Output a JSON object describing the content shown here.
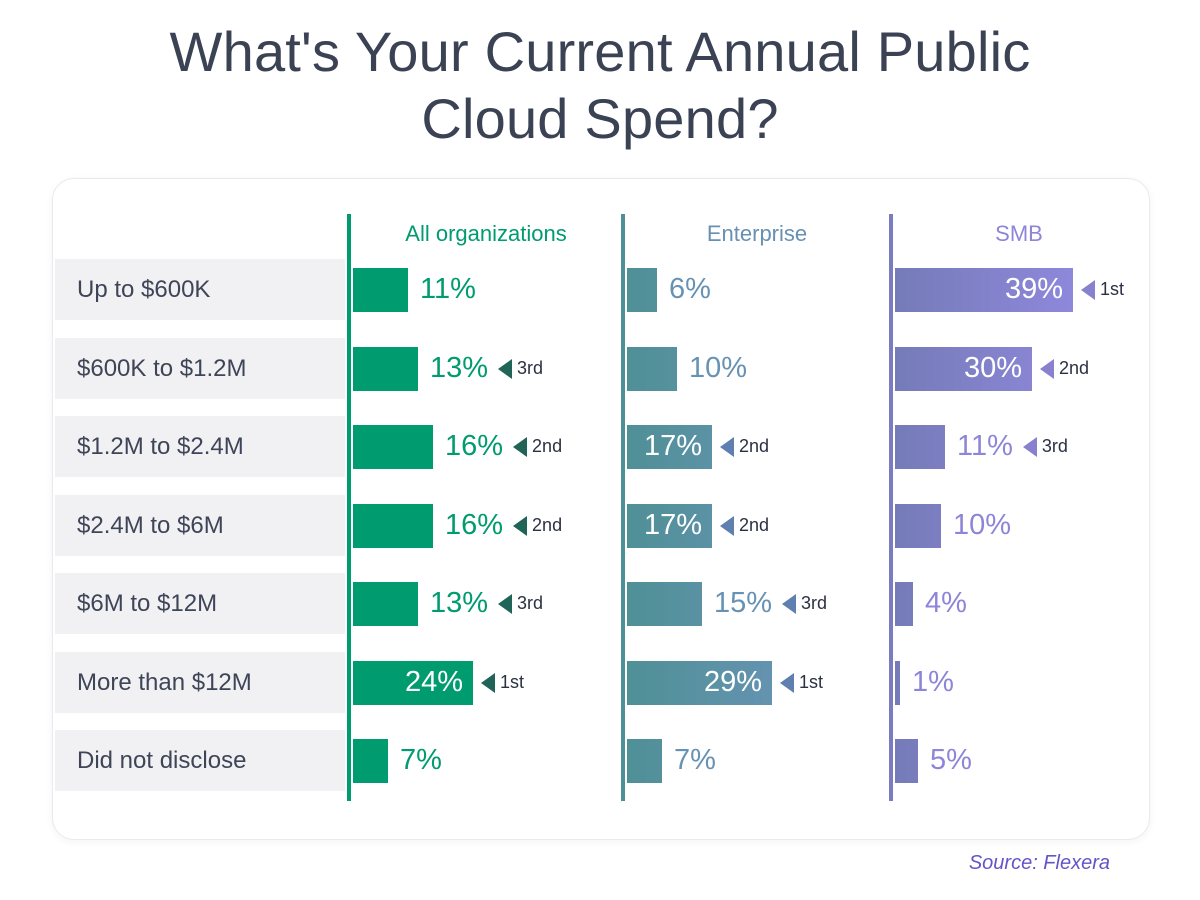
{
  "title": "What's Your Current Annual Public Cloud Spend?",
  "source": "Source: Flexera",
  "colors": {
    "title_text": "#3A4254",
    "row_label_text": "#3E4557",
    "row_band_bg": "#F1F1F4",
    "rank_text": "#2A3142",
    "card_border": "#E9EAEE",
    "source_text": "#6355C8"
  },
  "chart_data": {
    "type": "bar",
    "orientation": "horizontal",
    "unit": "%",
    "xlim": [
      0,
      40
    ],
    "grid": false,
    "legend_position": "column-headers-top",
    "title": "What's Your Current Annual Public Cloud Spend?",
    "categories": [
      "Up to $600K",
      "$600K to $1.2M",
      "$1.2M to $2.4M",
      "$2.4M to $6M",
      "$6M to $12M",
      "More than $12M",
      "Did not disclose"
    ],
    "series": [
      {
        "name": "All organizations",
        "values": [
          11,
          13,
          16,
          16,
          13,
          24,
          7
        ],
        "ranks": [
          null,
          "3rd",
          "2nd",
          "2nd",
          "3rd",
          "1st",
          null
        ],
        "label_inside": [
          false,
          false,
          false,
          false,
          false,
          true,
          false
        ],
        "header_color": "#019B70",
        "axis_color": "#019B70",
        "bar_color_start": "#019B70",
        "bar_color_end": "#019B70",
        "value_color": "#019B70",
        "arrow_color": "#1F6457"
      },
      {
        "name": "Enterprise",
        "values": [
          6,
          10,
          17,
          17,
          15,
          29,
          7
        ],
        "ranks": [
          null,
          null,
          "2nd",
          "2nd",
          "3rd",
          "1st",
          null
        ],
        "label_inside": [
          false,
          false,
          true,
          true,
          false,
          true,
          false
        ],
        "header_color": "#6890B2",
        "axis_color": "#4F9097",
        "bar_color_start": "#4F9096",
        "bar_color_end": "#6C94BA",
        "value_color": "#6792B4",
        "arrow_color": "#5E7FB0"
      },
      {
        "name": "SMB",
        "values": [
          39,
          30,
          11,
          10,
          4,
          1,
          5
        ],
        "ranks": [
          "1st",
          "2nd",
          "3rd",
          null,
          null,
          null,
          null
        ],
        "label_inside": [
          true,
          true,
          false,
          false,
          false,
          false,
          false
        ],
        "header_color": "#8D86D8",
        "axis_color": "#7B7CC0",
        "bar_color_start": "#757BB8",
        "bar_color_end": "#8F88DC",
        "value_color": "#8D86D8",
        "arrow_color": "#8781CE"
      }
    ]
  }
}
